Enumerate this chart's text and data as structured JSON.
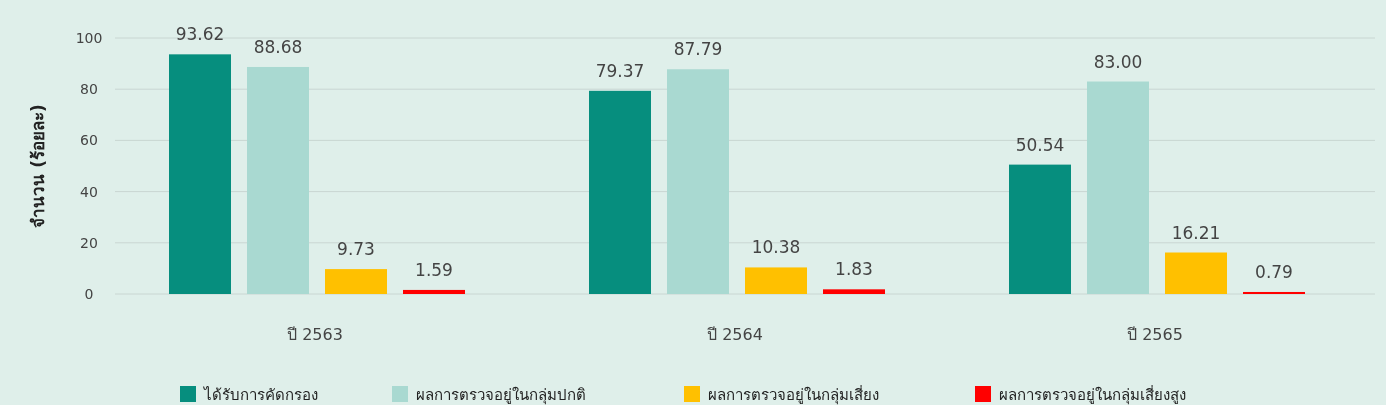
{
  "chart_data": {
    "type": "bar",
    "ylabel": "จำนวน (ร้อยละ)",
    "categories": [
      "ปี 2563",
      "ปี 2564",
      "ปี 2565"
    ],
    "series": [
      {
        "name": "ได้รับการคัดกรอง",
        "color": "#068e7e",
        "values": [
          93.62,
          79.37,
          50.54
        ]
      },
      {
        "name": "ผลการตรวจอยู่ในกลุ่มปกติ",
        "color": "#a9d9d1",
        "values": [
          88.68,
          87.79,
          83.0
        ]
      },
      {
        "name": "ผลการตรวจอยู่ในกลุ่มเสี่ยง",
        "color": "#ffc000",
        "values": [
          9.73,
          10.38,
          16.21
        ]
      },
      {
        "name": "ผลการตรวจอยู่ในกลุ่มเสี่ยงสูง",
        "color": "#ff0000",
        "values": [
          1.59,
          1.83,
          0.79
        ]
      }
    ],
    "value_labels": [
      [
        "93.62",
        "79.37",
        "50.54"
      ],
      [
        "88.68",
        "87.79",
        "83.00"
      ],
      [
        "9.73",
        "10.38",
        "16.21"
      ],
      [
        "1.59",
        "1.83",
        "0.79"
      ]
    ],
    "ylim": [
      0,
      100
    ],
    "yticks": [
      0,
      20,
      40,
      60,
      80,
      100
    ],
    "grid": "y",
    "legend": "bottom"
  }
}
